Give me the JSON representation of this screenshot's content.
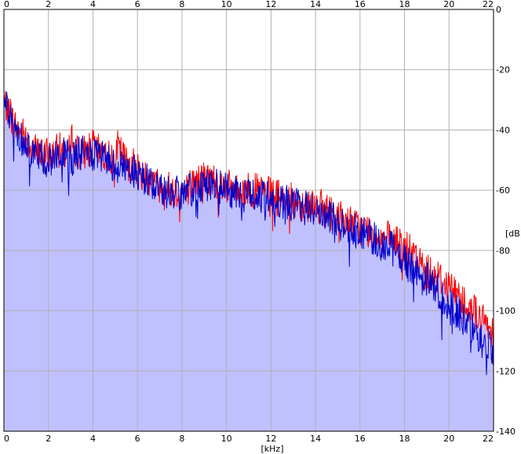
{
  "chart_data": {
    "type": "area",
    "title": "",
    "xlabel": "[kHz]",
    "ylabel": "[dB]",
    "xlim": [
      0,
      22
    ],
    "ylim": [
      -140,
      0
    ],
    "x_ticks": [
      "0",
      "2",
      "4",
      "6",
      "8",
      "10",
      "12",
      "14",
      "16",
      "18",
      "20",
      "22"
    ],
    "y_ticks": [
      "0",
      "-20",
      "-40",
      "-60",
      "-80",
      "-100",
      "-120",
      "-140"
    ],
    "grid": true,
    "legend": "none",
    "colors": {
      "background": "#ffffff",
      "plot_background": "#ffffff",
      "fill": "#c0c0ff",
      "grid": "#b0b0b0",
      "axis": "#000000",
      "series_1": "#ff0000",
      "series_2": "#0000cc"
    },
    "series": [
      {
        "color": "#ff0000",
        "x": [
          0,
          0.25,
          0.5,
          1,
          1.5,
          2,
          2.5,
          3,
          3.1,
          3.2,
          3.5,
          4,
          4.5,
          5,
          5.1,
          5.5,
          6,
          6.5,
          7,
          7.5,
          8,
          8.5,
          9,
          9.5,
          10,
          10.5,
          11,
          11.5,
          12,
          12.5,
          13,
          13.5,
          14,
          14.5,
          15,
          15.5,
          16,
          16.5,
          17,
          17.5,
          18,
          18.5,
          19,
          19.5,
          20,
          20.5,
          21,
          21.5,
          22
        ],
        "values": [
          -30,
          -33,
          -38,
          -42,
          -47,
          -48,
          -46,
          -47,
          -38,
          -46,
          -47,
          -45,
          -48,
          -49,
          -45,
          -50,
          -52,
          -55,
          -58,
          -59,
          -60,
          -57,
          -55,
          -56,
          -58,
          -60,
          -59,
          -60,
          -61,
          -62,
          -63,
          -64,
          -64,
          -66,
          -68,
          -70,
          -72,
          -73,
          -75,
          -76,
          -78,
          -82,
          -86,
          -88,
          -91,
          -95,
          -98,
          -103,
          -106
        ]
      },
      {
        "color": "#0000cc",
        "x": [
          0,
          0.25,
          0.5,
          1,
          1.5,
          2,
          2.5,
          3,
          3.5,
          4,
          4.5,
          5,
          5.5,
          6,
          6.5,
          7,
          7.5,
          8,
          8.5,
          9,
          9.5,
          10,
          10.5,
          11,
          11.5,
          12,
          12.5,
          13,
          13.5,
          14,
          14.5,
          15,
          15.5,
          16,
          16.5,
          17,
          17.5,
          18,
          18.5,
          19,
          19.5,
          20,
          20.5,
          21,
          21.5,
          22
        ],
        "values": [
          -25,
          -35,
          -40,
          -44,
          -48,
          -50,
          -47,
          -49,
          -47,
          -48,
          -49,
          -51,
          -52,
          -54,
          -56,
          -59,
          -60,
          -61,
          -59,
          -57,
          -58,
          -59,
          -61,
          -60,
          -62,
          -62,
          -63,
          -64,
          -65,
          -66,
          -68,
          -70,
          -71,
          -73,
          -75,
          -77,
          -79,
          -83,
          -86,
          -89,
          -93,
          -97,
          -101,
          -106,
          -110,
          -112
        ]
      }
    ]
  }
}
